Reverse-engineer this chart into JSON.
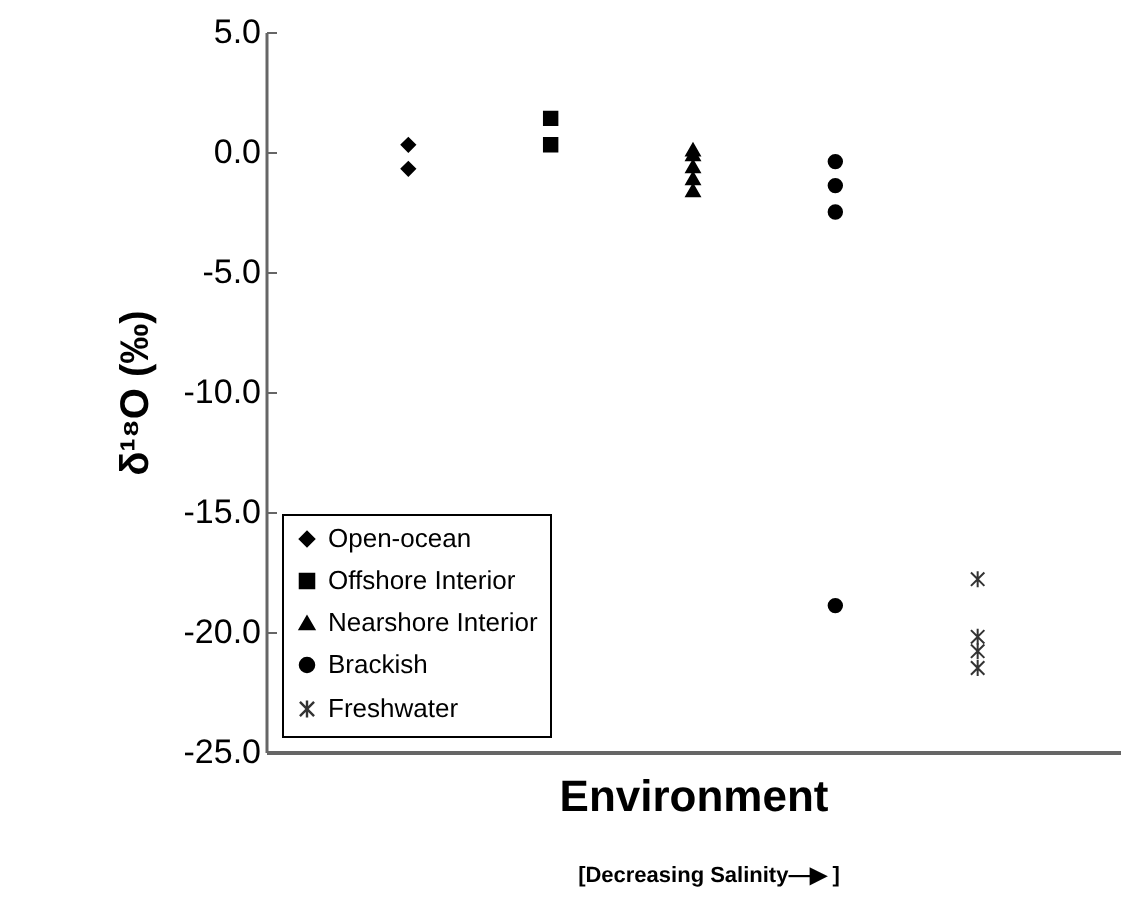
{
  "chart_data": {
    "type": "scatter",
    "xlabel": "Environment",
    "ylabel": "δ¹⁸O (‰)",
    "annotations": [
      "[Decreasing Salinity—▶ ]"
    ],
    "categories": [
      null,
      null,
      null,
      null,
      null
    ],
    "ylim": [
      -25,
      5
    ],
    "yticks": [
      {
        "value": 5,
        "label": "5.0"
      },
      {
        "value": 0,
        "label": "0.0"
      },
      {
        "value": -5,
        "label": "-5.0"
      },
      {
        "value": -10,
        "label": "-10.0"
      },
      {
        "value": -15,
        "label": "-15.0"
      },
      {
        "value": -20,
        "label": "-20.0"
      },
      {
        "value": -25,
        "label": "-25.0"
      }
    ],
    "grid": false,
    "legend": "bottom left",
    "series": [
      {
        "name": "Open-ocean",
        "color": "#000000",
        "marker": "diamond",
        "values": [
          0.3,
          null,
          null,
          null,
          null
        ]
      },
      {
        "color": "#000000",
        "marker": "diamond",
        "values": [
          -0.7,
          null,
          null,
          null,
          null
        ]
      },
      {
        "name": "Offshore Interior",
        "color": "#000000",
        "marker": "square",
        "values": [
          null,
          1.4,
          null,
          null,
          null
        ]
      },
      {
        "color": "#000000",
        "marker": "square",
        "values": [
          null,
          0.3,
          null,
          null,
          null
        ]
      },
      {
        "name": "Nearshore Interior",
        "color": "#000000",
        "marker": "triangle",
        "values": [
          null,
          null,
          0.1,
          null,
          null
        ]
      },
      {
        "color": "#000000",
        "marker": "triangle",
        "values": [
          null,
          null,
          -0.1,
          null,
          null
        ]
      },
      {
        "color": "#000000",
        "marker": "triangle",
        "values": [
          null,
          null,
          -0.6,
          null,
          null
        ]
      },
      {
        "color": "#000000",
        "marker": "triangle",
        "values": [
          null,
          null,
          -1.1,
          null,
          null
        ]
      },
      {
        "color": "#000000",
        "marker": "triangle",
        "values": [
          null,
          null,
          -1.6,
          null,
          null
        ]
      },
      {
        "name": "Brackish",
        "color": "#000000",
        "marker": "circle",
        "values": [
          null,
          null,
          null,
          -0.4,
          null
        ]
      },
      {
        "color": "#000000",
        "marker": "circle",
        "values": [
          null,
          null,
          null,
          -1.4,
          null
        ]
      },
      {
        "color": "#000000",
        "marker": "circle",
        "values": [
          null,
          null,
          null,
          -2.5,
          null
        ]
      },
      {
        "color": "#000000",
        "marker": "circle",
        "values": [
          null,
          null,
          null,
          -18.9,
          null
        ]
      },
      {
        "name": "Freshwater",
        "color": "#333333",
        "marker": "cross",
        "values": [
          null,
          null,
          null,
          null,
          -17.8
        ]
      },
      {
        "color": "#333333",
        "marker": "cross",
        "values": [
          null,
          null,
          null,
          null,
          -20.2
        ]
      },
      {
        "color": "#333333",
        "marker": "cross",
        "values": [
          null,
          null,
          null,
          null,
          -20.8
        ]
      },
      {
        "color": "#333333",
        "marker": "cross",
        "values": [
          null,
          null,
          null,
          null,
          -21.5
        ]
      }
    ]
  }
}
